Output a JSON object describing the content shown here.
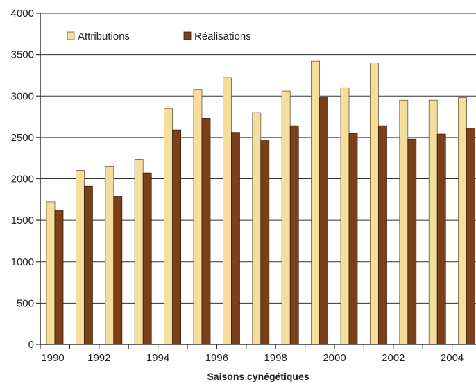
{
  "chart_data": {
    "type": "bar",
    "xlabel": "Saisons cynégétiques",
    "ylabel": "",
    "ylim": [
      0,
      4000
    ],
    "yticks": [
      0,
      500,
      1000,
      1500,
      2000,
      2500,
      3000,
      3500,
      4000
    ],
    "categories": [
      "1990",
      "1991",
      "1992",
      "1993",
      "1994",
      "1995",
      "1996",
      "1997",
      "1998",
      "1999",
      "2000",
      "2001",
      "2002",
      "2003",
      "2004"
    ],
    "category_labels": [
      "1990",
      "",
      "1992",
      "",
      "1994",
      "",
      "1996",
      "",
      "1998",
      "",
      "2000",
      "",
      "2002",
      "",
      "2004"
    ],
    "grid": true,
    "legend_position": "top-left",
    "series": [
      {
        "name": "Attributions",
        "color": "#f5dd9c",
        "values": [
          1720,
          2100,
          2150,
          2235,
          2850,
          3080,
          3220,
          2800,
          3060,
          3420,
          3100,
          3400,
          2950,
          2950,
          2980
        ]
      },
      {
        "name": "Réalisations",
        "color": "#7b3f1a",
        "values": [
          1620,
          1910,
          1790,
          2070,
          2590,
          2730,
          2560,
          2460,
          2640,
          2990,
          2550,
          2640,
          2480,
          2540,
          2610
        ]
      }
    ]
  }
}
